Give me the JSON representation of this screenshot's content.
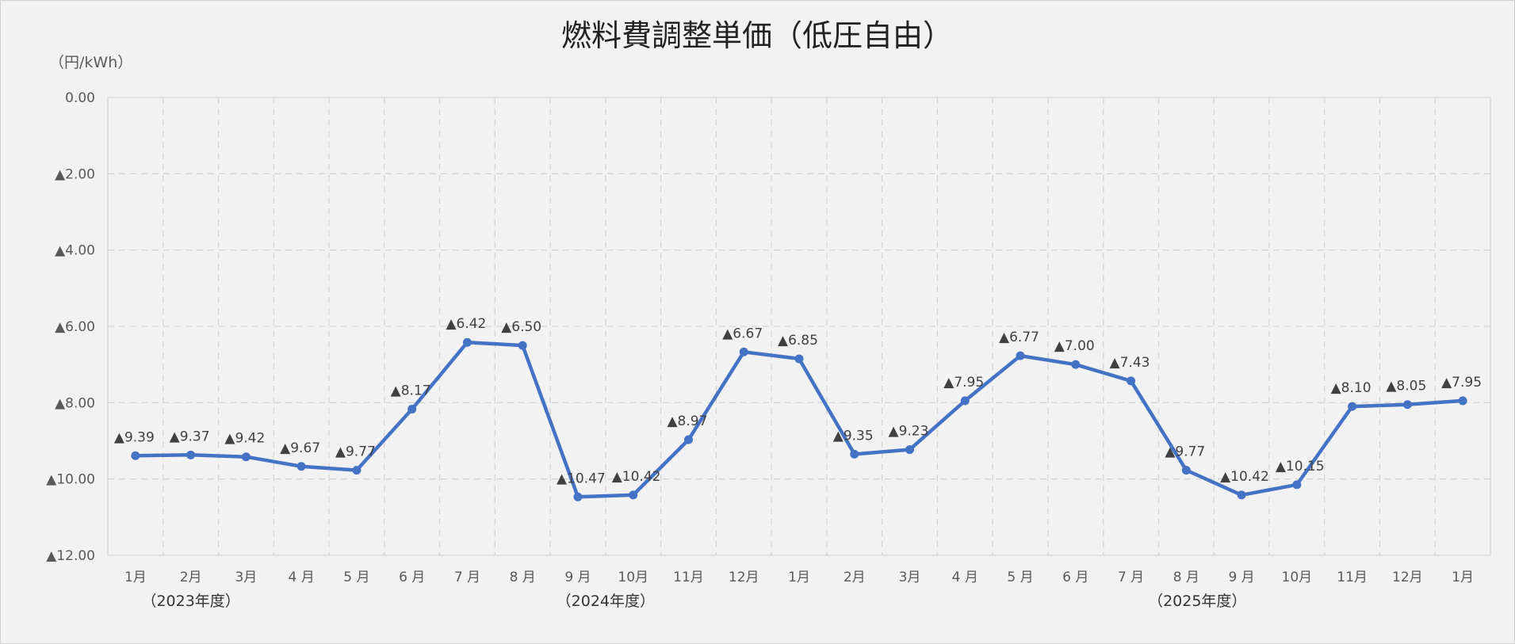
{
  "chart_data": {
    "type": "line",
    "title": "燃料費調整単価（低圧自由）",
    "unit_label": "（円/kWh）",
    "ylim": [
      0,
      12
    ],
    "y_inverted": true,
    "y_ticks": [
      "0.00",
      "▲2.00",
      "▲4.00",
      "▲6.00",
      "▲8.00",
      "▲10.00",
      "▲12.00"
    ],
    "y_tick_values": [
      0,
      2,
      4,
      6,
      8,
      10,
      12
    ],
    "categories": [
      "1月",
      "2月",
      "3月",
      "4 月",
      "5 月",
      "6 月",
      "7 月",
      "8 月",
      "9 月",
      "10月",
      "11月",
      "12月",
      "1月",
      "2月",
      "3月",
      "4 月",
      "5 月",
      "6 月",
      "7 月",
      "8 月",
      "9 月",
      "10月",
      "11月",
      "12月",
      "1月"
    ],
    "fiscal_year_labels": [
      {
        "text": "（2023年度）",
        "category_index": 1
      },
      {
        "text": "（2024年度）",
        "category_index": 8.5
      },
      {
        "text": "（2025年度）",
        "category_index": 19.2
      }
    ],
    "values": [
      9.39,
      9.37,
      9.42,
      9.67,
      9.77,
      8.17,
      6.42,
      6.5,
      10.47,
      10.42,
      8.97,
      6.67,
      6.85,
      9.35,
      9.23,
      7.95,
      6.77,
      7.0,
      7.43,
      9.77,
      10.42,
      10.15,
      8.1,
      8.05,
      7.95
    ],
    "data_labels": [
      "▲9.39",
      "▲9.37",
      "▲9.42",
      "▲9.67",
      "▲9.77",
      "▲8.17",
      "▲6.42",
      "▲6.50",
      "▲10.47",
      "▲10.42",
      "▲8.97",
      "▲6.67",
      "▲6.85",
      "▲9.35",
      "▲9.23",
      "▲7.95",
      "▲6.77",
      "▲7.00",
      "▲7.43",
      "▲9.77",
      "▲10.42",
      "▲10.15",
      "▲8.10",
      "▲8.05",
      "▲7.95"
    ],
    "grid": true,
    "legend": "none",
    "line_color": "#4472c4"
  }
}
